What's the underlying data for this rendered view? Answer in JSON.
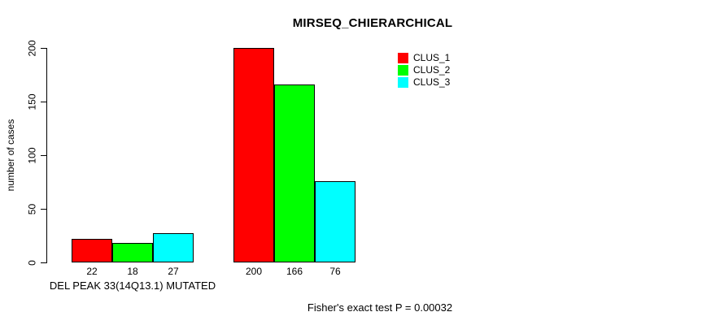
{
  "chart_data": {
    "type": "bar",
    "title": "MIRSEQ_CHIERARCHICAL",
    "ylabel": "number of cases",
    "xlabel": "",
    "categories": [
      "DEL PEAK 33(14Q13.1) MUTATED",
      ""
    ],
    "series": [
      {
        "name": "CLUS_1",
        "color": "#FF0000",
        "values": [
          22,
          200
        ]
      },
      {
        "name": "CLUS_2",
        "color": "#00FF00",
        "values": [
          18,
          166
        ]
      },
      {
        "name": "CLUS_3",
        "color": "#00FFFF",
        "values": [
          27,
          76
        ]
      }
    ],
    "bar_value_labels": [
      [
        22,
        18,
        27
      ],
      [
        200,
        166,
        76
      ]
    ],
    "ylim": [
      0,
      200
    ],
    "y_ticks": [
      0,
      50,
      100,
      150,
      200
    ],
    "grid": false,
    "legend_position": "top-right",
    "annotation": "Fisher's exact test P = 0.00032",
    "bar_border_color": "#000000",
    "text_color": "#000000",
    "background_color": "#FFFFFF"
  }
}
